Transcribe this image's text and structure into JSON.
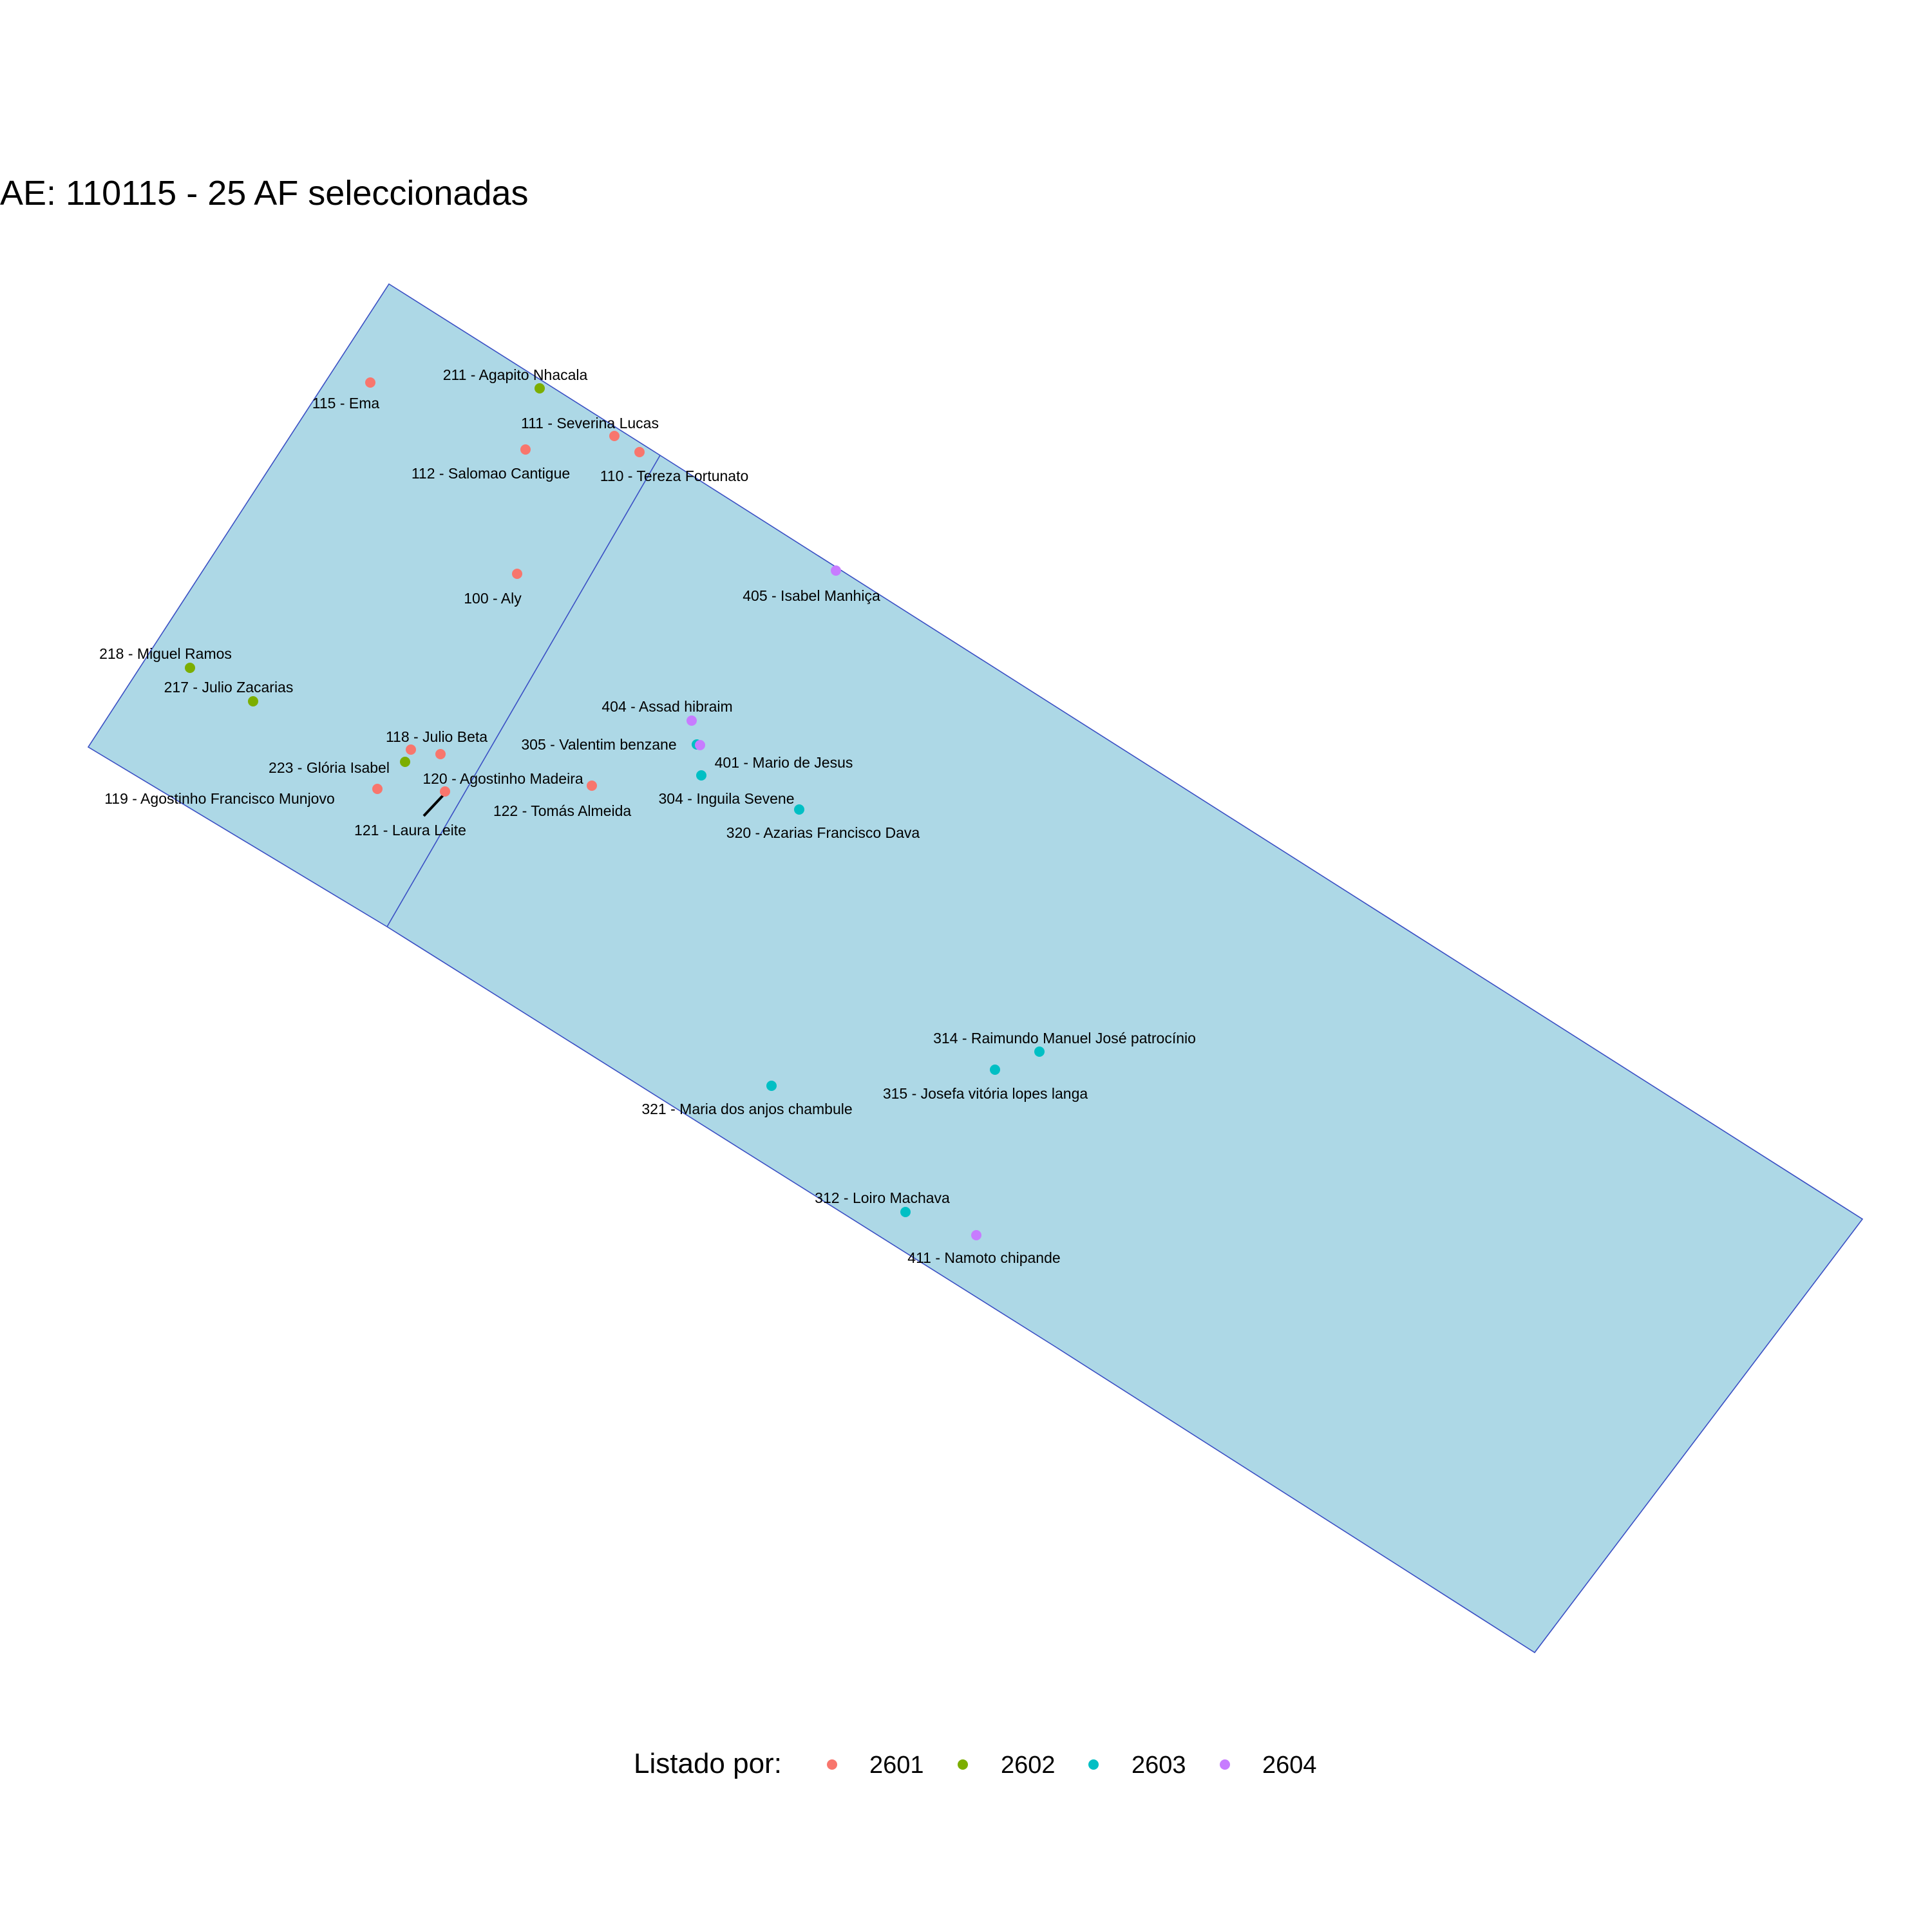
{
  "title": "AE: 110115 - 25  AF seleccionadas",
  "colors": {
    "area_fill": "#add8e6",
    "area_stroke": "#3a4fc4",
    "2601": "#f8766d",
    "2602": "#7cae00",
    "2603": "#00bfc4",
    "2604": "#c77cff"
  },
  "legend": {
    "title": "Listado por:",
    "items": [
      "2601",
      "2602",
      "2603",
      "2604"
    ]
  },
  "households": [
    {
      "label": "115 - Ema",
      "group": "2601"
    },
    {
      "label": "211 - Agapito Nhacala",
      "group": "2602"
    },
    {
      "label": "111 - Severina Lucas",
      "group": "2601"
    },
    {
      "label": "110 - Tereza Fortunato",
      "group": "2601"
    },
    {
      "label": "112 - Salomao Cantigue",
      "group": "2601"
    },
    {
      "label": "100 - Aly",
      "group": "2601"
    },
    {
      "label": "405 - Isabel Manhiça",
      "group": "2604"
    },
    {
      "label": "218 - Miguel Ramos",
      "group": "2602"
    },
    {
      "label": "217 - Julio Zacarias",
      "group": "2602"
    },
    {
      "label": "404 - Assad hibraim",
      "group": "2604"
    },
    {
      "label": "305 - Valentim benzane",
      "group": "2603"
    },
    {
      "label": "401 - Mario de Jesus",
      "group": "2604"
    },
    {
      "label": "118 - Julio Beta",
      "group": "2601"
    },
    {
      "label": "223 - Glória Isabel",
      "group": "2602"
    },
    {
      "label": "120 - Agostinho Madeira",
      "group": "2601"
    },
    {
      "label": "119 - Agostinho Francisco Munjovo",
      "group": "2601"
    },
    {
      "label": "121 - Laura Leite",
      "group": "2601"
    },
    {
      "label": "122 - Tomás Almeida",
      "group": "2601"
    },
    {
      "label": "304 - Inguila Sevene",
      "group": "2603"
    },
    {
      "label": "320 - Azarias Francisco Dava",
      "group": "2603"
    },
    {
      "label": "314 - Raimundo Manuel José patrocínio",
      "group": "2603"
    },
    {
      "label": "315 - Josefa vitória lopes langa",
      "group": "2603"
    },
    {
      "label": "321 - Maria dos anjos chambule",
      "group": "2603"
    },
    {
      "label": "312 - Loiro Machava",
      "group": "2603"
    },
    {
      "label": "411 - Namoto chipande",
      "group": "2604"
    }
  ]
}
